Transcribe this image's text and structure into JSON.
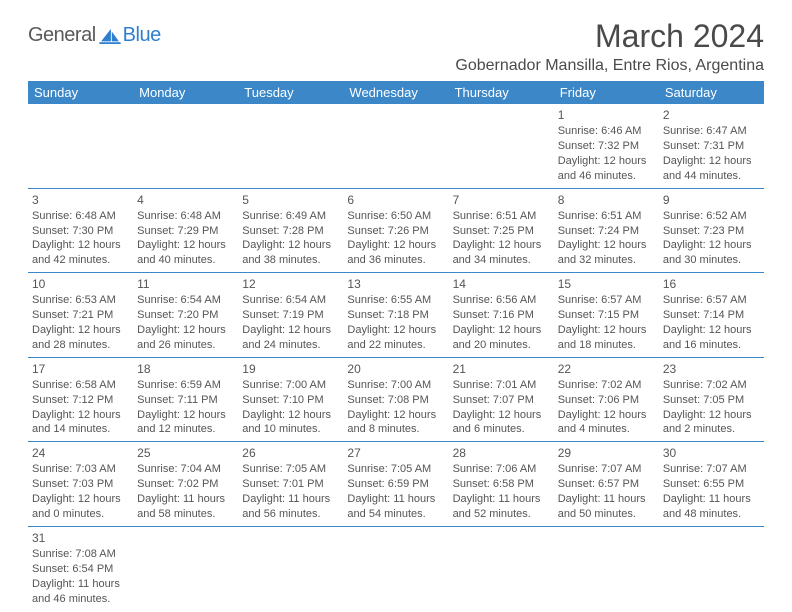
{
  "brand": {
    "general": "General",
    "blue": "Blue"
  },
  "title": "March 2024",
  "location": "Gobernador Mansilla, Entre Rios, Argentina",
  "colors": {
    "header_bg": "#3b87c8",
    "header_text": "#ffffff",
    "border": "#3b87c8",
    "text": "#555555",
    "logo_blue": "#2f7fd1"
  },
  "day_headers": [
    "Sunday",
    "Monday",
    "Tuesday",
    "Wednesday",
    "Thursday",
    "Friday",
    "Saturday"
  ],
  "weeks": [
    [
      null,
      null,
      null,
      null,
      null,
      {
        "n": "1",
        "sr": "Sunrise: 6:46 AM",
        "ss": "Sunset: 7:32 PM",
        "d1": "Daylight: 12 hours",
        "d2": "and 46 minutes."
      },
      {
        "n": "2",
        "sr": "Sunrise: 6:47 AM",
        "ss": "Sunset: 7:31 PM",
        "d1": "Daylight: 12 hours",
        "d2": "and 44 minutes."
      }
    ],
    [
      {
        "n": "3",
        "sr": "Sunrise: 6:48 AM",
        "ss": "Sunset: 7:30 PM",
        "d1": "Daylight: 12 hours",
        "d2": "and 42 minutes."
      },
      {
        "n": "4",
        "sr": "Sunrise: 6:48 AM",
        "ss": "Sunset: 7:29 PM",
        "d1": "Daylight: 12 hours",
        "d2": "and 40 minutes."
      },
      {
        "n": "5",
        "sr": "Sunrise: 6:49 AM",
        "ss": "Sunset: 7:28 PM",
        "d1": "Daylight: 12 hours",
        "d2": "and 38 minutes."
      },
      {
        "n": "6",
        "sr": "Sunrise: 6:50 AM",
        "ss": "Sunset: 7:26 PM",
        "d1": "Daylight: 12 hours",
        "d2": "and 36 minutes."
      },
      {
        "n": "7",
        "sr": "Sunrise: 6:51 AM",
        "ss": "Sunset: 7:25 PM",
        "d1": "Daylight: 12 hours",
        "d2": "and 34 minutes."
      },
      {
        "n": "8",
        "sr": "Sunrise: 6:51 AM",
        "ss": "Sunset: 7:24 PM",
        "d1": "Daylight: 12 hours",
        "d2": "and 32 minutes."
      },
      {
        "n": "9",
        "sr": "Sunrise: 6:52 AM",
        "ss": "Sunset: 7:23 PM",
        "d1": "Daylight: 12 hours",
        "d2": "and 30 minutes."
      }
    ],
    [
      {
        "n": "10",
        "sr": "Sunrise: 6:53 AM",
        "ss": "Sunset: 7:21 PM",
        "d1": "Daylight: 12 hours",
        "d2": "and 28 minutes."
      },
      {
        "n": "11",
        "sr": "Sunrise: 6:54 AM",
        "ss": "Sunset: 7:20 PM",
        "d1": "Daylight: 12 hours",
        "d2": "and 26 minutes."
      },
      {
        "n": "12",
        "sr": "Sunrise: 6:54 AM",
        "ss": "Sunset: 7:19 PM",
        "d1": "Daylight: 12 hours",
        "d2": "and 24 minutes."
      },
      {
        "n": "13",
        "sr": "Sunrise: 6:55 AM",
        "ss": "Sunset: 7:18 PM",
        "d1": "Daylight: 12 hours",
        "d2": "and 22 minutes."
      },
      {
        "n": "14",
        "sr": "Sunrise: 6:56 AM",
        "ss": "Sunset: 7:16 PM",
        "d1": "Daylight: 12 hours",
        "d2": "and 20 minutes."
      },
      {
        "n": "15",
        "sr": "Sunrise: 6:57 AM",
        "ss": "Sunset: 7:15 PM",
        "d1": "Daylight: 12 hours",
        "d2": "and 18 minutes."
      },
      {
        "n": "16",
        "sr": "Sunrise: 6:57 AM",
        "ss": "Sunset: 7:14 PM",
        "d1": "Daylight: 12 hours",
        "d2": "and 16 minutes."
      }
    ],
    [
      {
        "n": "17",
        "sr": "Sunrise: 6:58 AM",
        "ss": "Sunset: 7:12 PM",
        "d1": "Daylight: 12 hours",
        "d2": "and 14 minutes."
      },
      {
        "n": "18",
        "sr": "Sunrise: 6:59 AM",
        "ss": "Sunset: 7:11 PM",
        "d1": "Daylight: 12 hours",
        "d2": "and 12 minutes."
      },
      {
        "n": "19",
        "sr": "Sunrise: 7:00 AM",
        "ss": "Sunset: 7:10 PM",
        "d1": "Daylight: 12 hours",
        "d2": "and 10 minutes."
      },
      {
        "n": "20",
        "sr": "Sunrise: 7:00 AM",
        "ss": "Sunset: 7:08 PM",
        "d1": "Daylight: 12 hours",
        "d2": "and 8 minutes."
      },
      {
        "n": "21",
        "sr": "Sunrise: 7:01 AM",
        "ss": "Sunset: 7:07 PM",
        "d1": "Daylight: 12 hours",
        "d2": "and 6 minutes."
      },
      {
        "n": "22",
        "sr": "Sunrise: 7:02 AM",
        "ss": "Sunset: 7:06 PM",
        "d1": "Daylight: 12 hours",
        "d2": "and 4 minutes."
      },
      {
        "n": "23",
        "sr": "Sunrise: 7:02 AM",
        "ss": "Sunset: 7:05 PM",
        "d1": "Daylight: 12 hours",
        "d2": "and 2 minutes."
      }
    ],
    [
      {
        "n": "24",
        "sr": "Sunrise: 7:03 AM",
        "ss": "Sunset: 7:03 PM",
        "d1": "Daylight: 12 hours",
        "d2": "and 0 minutes."
      },
      {
        "n": "25",
        "sr": "Sunrise: 7:04 AM",
        "ss": "Sunset: 7:02 PM",
        "d1": "Daylight: 11 hours",
        "d2": "and 58 minutes."
      },
      {
        "n": "26",
        "sr": "Sunrise: 7:05 AM",
        "ss": "Sunset: 7:01 PM",
        "d1": "Daylight: 11 hours",
        "d2": "and 56 minutes."
      },
      {
        "n": "27",
        "sr": "Sunrise: 7:05 AM",
        "ss": "Sunset: 6:59 PM",
        "d1": "Daylight: 11 hours",
        "d2": "and 54 minutes."
      },
      {
        "n": "28",
        "sr": "Sunrise: 7:06 AM",
        "ss": "Sunset: 6:58 PM",
        "d1": "Daylight: 11 hours",
        "d2": "and 52 minutes."
      },
      {
        "n": "29",
        "sr": "Sunrise: 7:07 AM",
        "ss": "Sunset: 6:57 PM",
        "d1": "Daylight: 11 hours",
        "d2": "and 50 minutes."
      },
      {
        "n": "30",
        "sr": "Sunrise: 7:07 AM",
        "ss": "Sunset: 6:55 PM",
        "d1": "Daylight: 11 hours",
        "d2": "and 48 minutes."
      }
    ],
    [
      {
        "n": "31",
        "sr": "Sunrise: 7:08 AM",
        "ss": "Sunset: 6:54 PM",
        "d1": "Daylight: 11 hours",
        "d2": "and 46 minutes."
      },
      null,
      null,
      null,
      null,
      null,
      null
    ]
  ]
}
